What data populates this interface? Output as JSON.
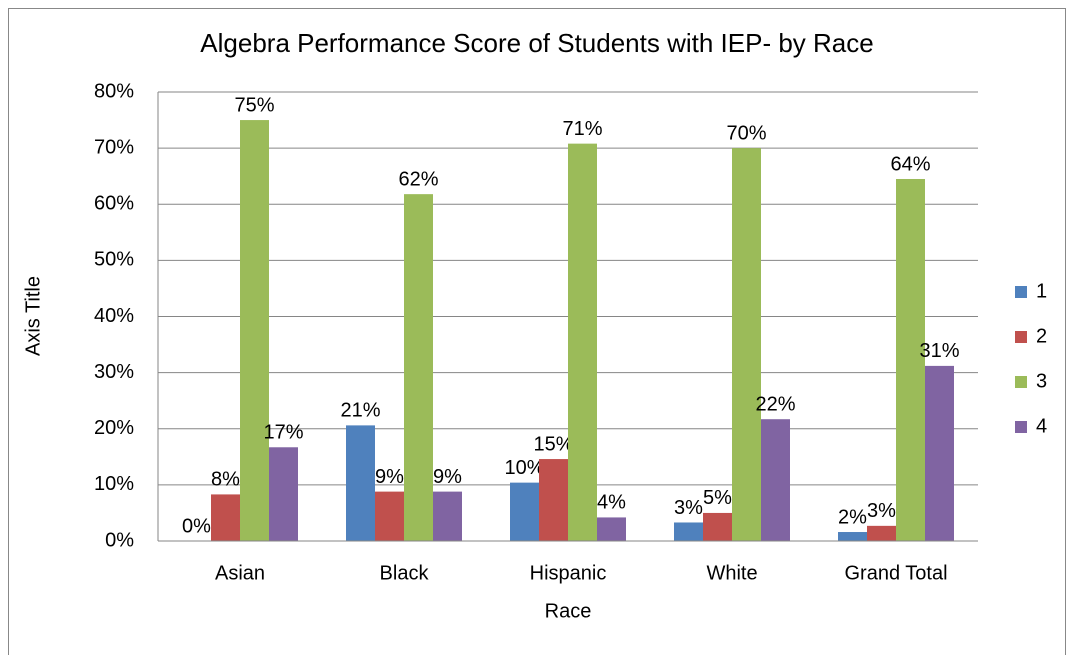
{
  "chart_data": {
    "type": "bar",
    "title": "Algebra Performance Score of Students with IEP- by Race",
    "x_label": "Race",
    "y_label": "Axis Title",
    "categories": [
      "Asian",
      "Black",
      "Hispanic",
      "White",
      "Grand Total"
    ],
    "series": [
      {
        "name": "1",
        "color": "#4f81bd",
        "values": [
          0,
          20.6,
          10.4,
          3.3,
          1.6
        ],
        "value_labels": [
          "0%",
          "21%",
          "10%",
          "3%",
          "2%"
        ]
      },
      {
        "name": "2",
        "color": "#c0504d",
        "values": [
          8.3,
          8.8,
          14.6,
          5.0,
          2.7
        ],
        "value_labels": [
          "8%",
          "9%",
          "15%",
          "5%",
          "3%"
        ]
      },
      {
        "name": "3",
        "color": "#9bbb59",
        "values": [
          75.0,
          61.8,
          70.8,
          70.0,
          64.5
        ],
        "value_labels": [
          "75%",
          "62%",
          "71%",
          "70%",
          "64%"
        ]
      },
      {
        "name": "4",
        "color": "#8064a2",
        "values": [
          16.7,
          8.8,
          4.2,
          21.7,
          31.2
        ],
        "value_labels": [
          "17%",
          "9%",
          "4%",
          "22%",
          "31%"
        ]
      }
    ],
    "ylim": [
      0,
      80
    ],
    "yticks": [
      {
        "value": 0,
        "label": "0%"
      },
      {
        "value": 10,
        "label": "10%"
      },
      {
        "value": 20,
        "label": "20%"
      },
      {
        "value": 30,
        "label": "30%"
      },
      {
        "value": 40,
        "label": "40%"
      },
      {
        "value": 50,
        "label": "50%"
      },
      {
        "value": 60,
        "label": "60%"
      },
      {
        "value": 70,
        "label": "70%"
      },
      {
        "value": 80,
        "label": "80%"
      }
    ],
    "grid": true,
    "legend": "right"
  }
}
